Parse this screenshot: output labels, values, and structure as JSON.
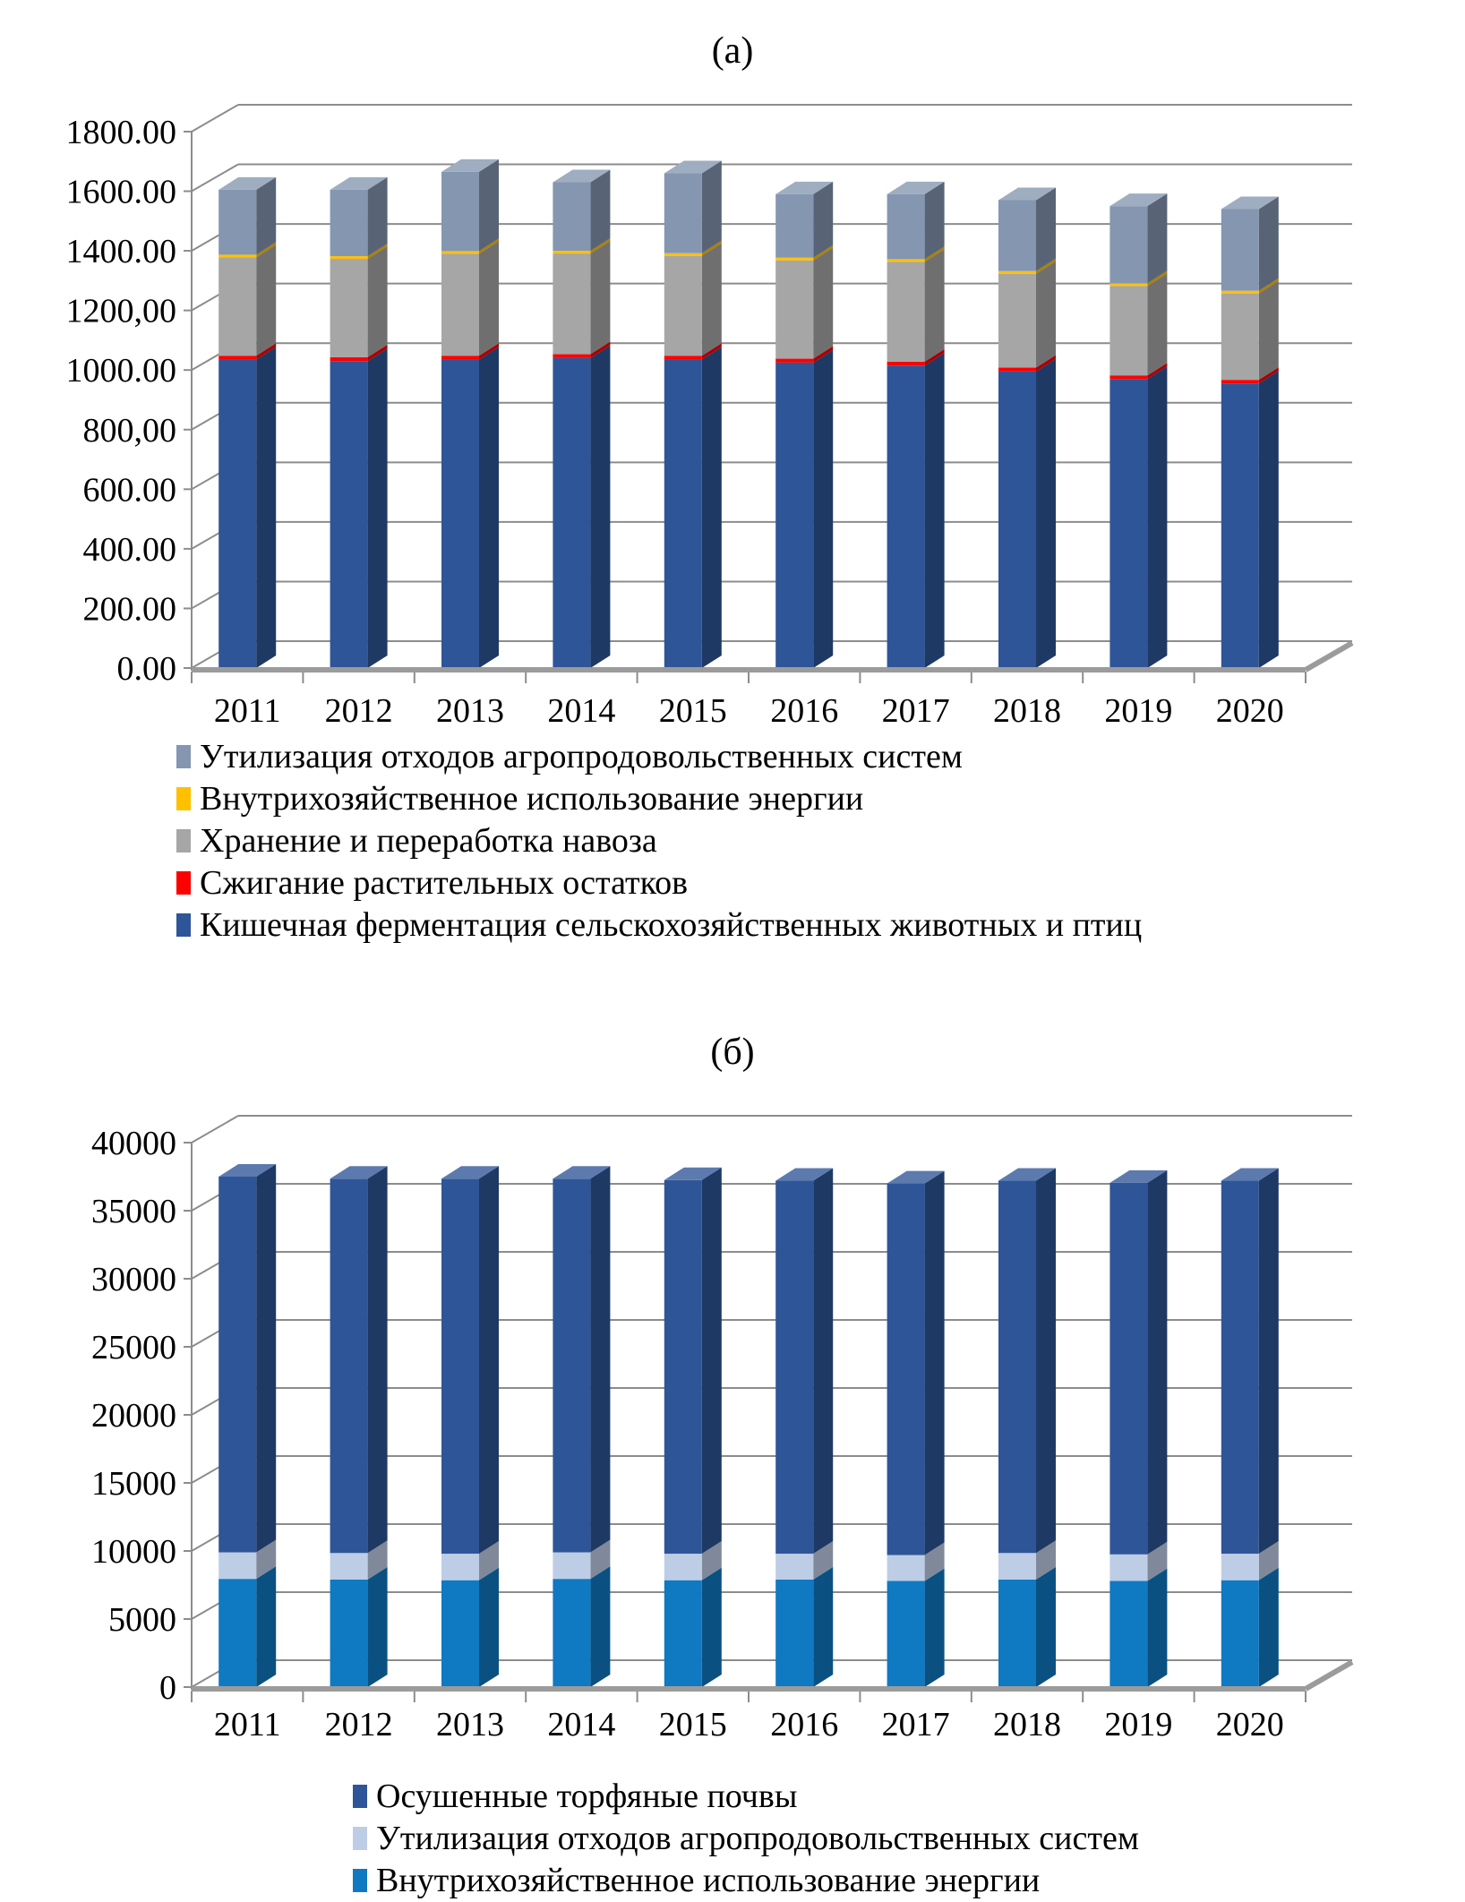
{
  "page": {
    "background": "#ffffff"
  },
  "chart_data": [
    {
      "type": "bar",
      "variant": "3d-stacked-column",
      "title": "(а)",
      "categories": [
        "2011",
        "2012",
        "2013",
        "2014",
        "2015",
        "2016",
        "2017",
        "2018",
        "2019",
        "2020"
      ],
      "ylim": [
        0,
        1800
      ],
      "y_tick_step": 200,
      "y_tick_labels": [
        "0.00",
        "200.00",
        "400.00",
        "600.00",
        "800,00",
        "1000.00",
        "1200,00",
        "1400.00",
        "1600.00",
        "1800.00"
      ],
      "grid": true,
      "legend_position": "bottom-left",
      "series": [
        {
          "name": "Кишечная ферментация сельскохозяйственных животных и птиц",
          "color": "#2E5597",
          "values": [
            1035,
            1030,
            1035,
            1040,
            1035,
            1025,
            1015,
            995,
            970,
            955
          ]
        },
        {
          "name": "Сжигание растительных остатков",
          "color": "#FF0000",
          "values": [
            13,
            13,
            13,
            13,
            13,
            13,
            13,
            13,
            12,
            12
          ]
        },
        {
          "name": "Хранение и переработка навоза",
          "color": "#A6A6A6",
          "values": [
            330,
            330,
            342,
            338,
            335,
            330,
            335,
            315,
            300,
            290
          ]
        },
        {
          "name": "Внутрихозяйственное использование энергии",
          "color": "#FFC000",
          "values": [
            9,
            9,
            9,
            9,
            9,
            9,
            9,
            9,
            9,
            9
          ]
        },
        {
          "name": "Утилизация отходов агропродовольственных систем",
          "color": "#8496B0",
          "values": [
            218,
            223,
            266,
            230,
            268,
            213,
            218,
            238,
            259,
            274
          ]
        }
      ]
    },
    {
      "type": "bar",
      "variant": "3d-stacked-column",
      "title": "(б)",
      "categories": [
        "2011",
        "2012",
        "2013",
        "2014",
        "2015",
        "2016",
        "2017",
        "2018",
        "2019",
        "2020"
      ],
      "ylim": [
        0,
        40000
      ],
      "y_tick_step": 5000,
      "y_tick_labels": [
        "0",
        "5000",
        "10000",
        "15000",
        "20000",
        "25000",
        "30000",
        "35000",
        "40000"
      ],
      "grid": true,
      "legend_position": "bottom-center",
      "series": [
        {
          "name": "Внутрихозяйственное использование энергии",
          "color": "#0F79C2",
          "values": [
            7950,
            7900,
            7850,
            7950,
            7850,
            7900,
            7800,
            7900,
            7800,
            7850
          ]
        },
        {
          "name": "Утилизация отходов агропродовольственных систем",
          "color": "#BDCDE6",
          "values": [
            1950,
            1950,
            1950,
            1950,
            1950,
            1900,
            1900,
            1950,
            1950,
            1950
          ]
        },
        {
          "name": "Осушенные торфяные почвы",
          "color": "#2E5597",
          "values": [
            27600,
            27500,
            27550,
            27450,
            27450,
            27400,
            27300,
            27350,
            27300,
            27400
          ]
        }
      ]
    }
  ],
  "colors": {
    "gridline": "#8C8C8C",
    "axis": "#8C8C8C",
    "floor_edge": "#9B9B9B",
    "text": "#000000"
  }
}
